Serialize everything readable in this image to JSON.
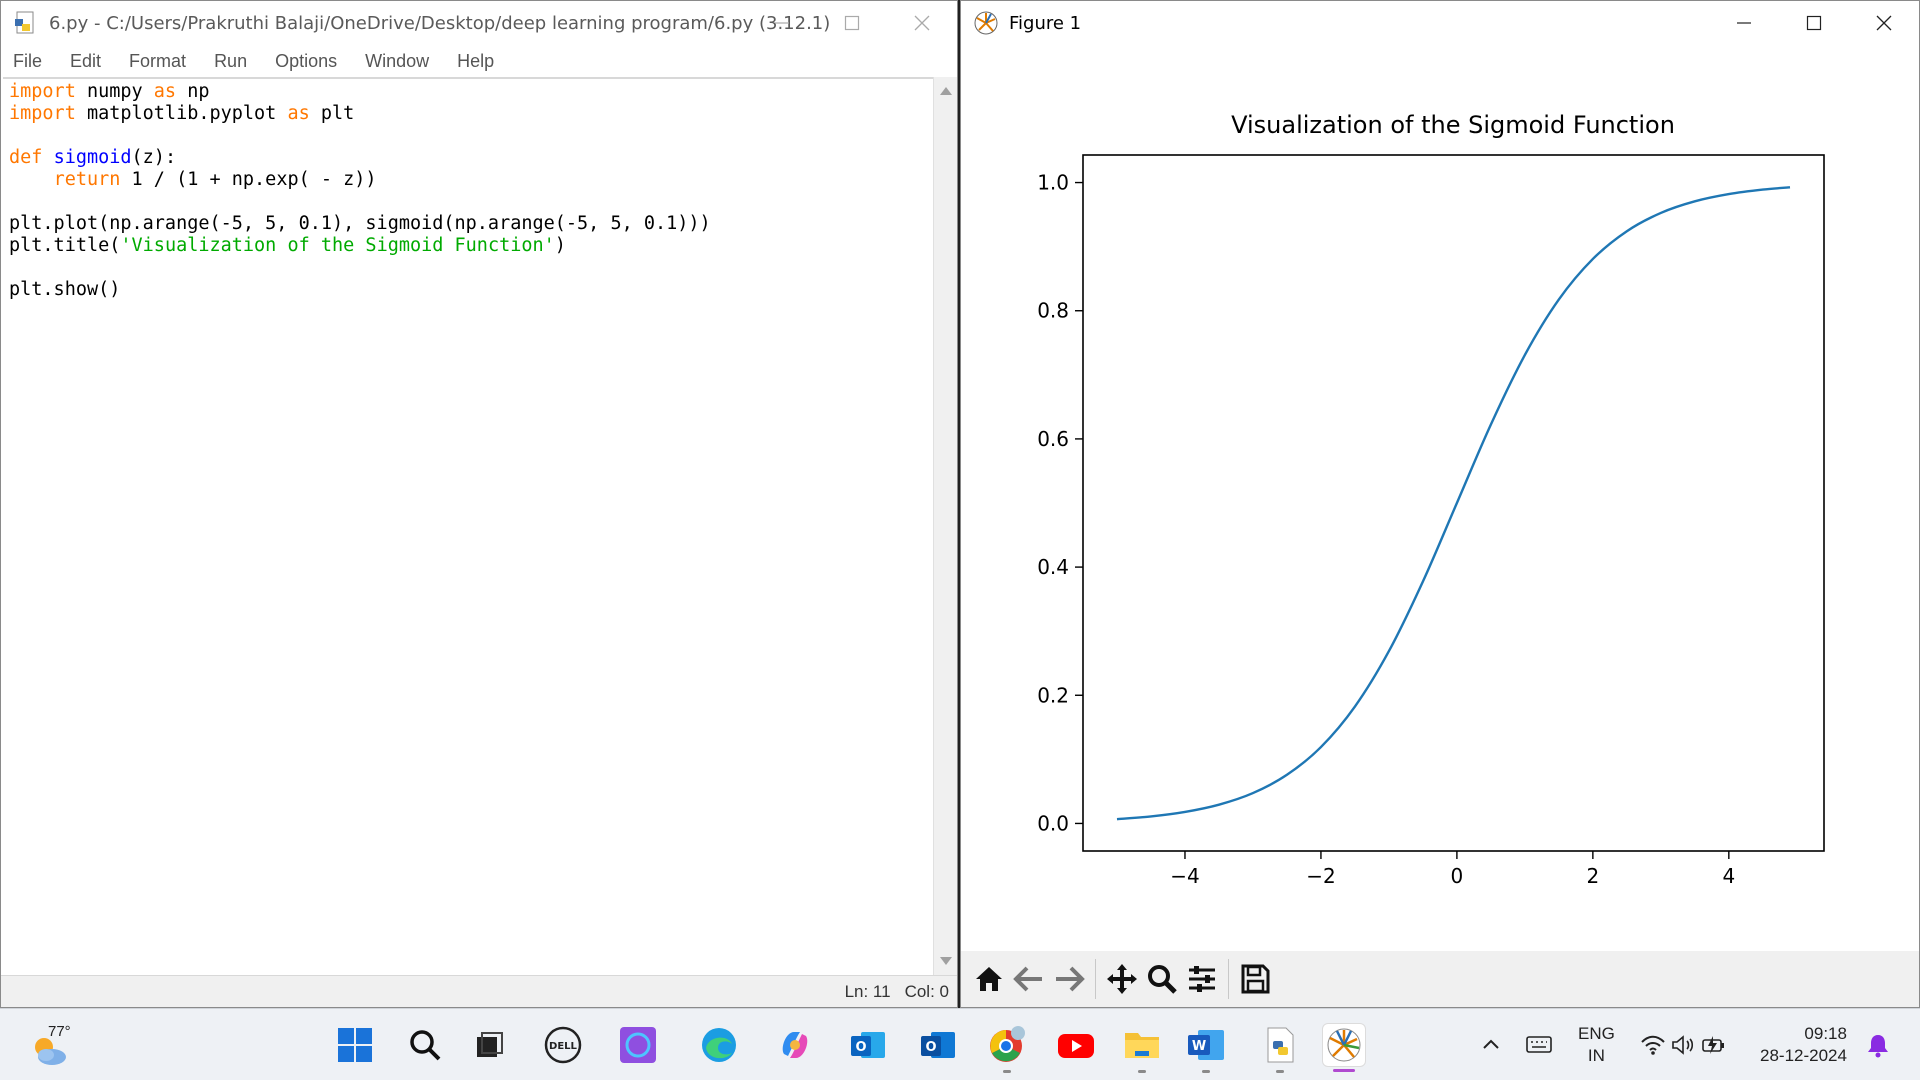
{
  "editor": {
    "title": "6.py - C:/Users/Prakruthi Balaji/OneDrive/Desktop/deep learning program/6.py (3.12.1)",
    "menu": [
      "File",
      "Edit",
      "Format",
      "Run",
      "Options",
      "Window",
      "Help"
    ],
    "status": {
      "line": "Ln: 11",
      "col": "Col: 0"
    }
  },
  "figure": {
    "title": "Figure 1"
  },
  "chart_data": {
    "type": "line",
    "title": "Visualization of the Sigmoid Function",
    "xlabel": "",
    "ylabel": "",
    "x_range": [
      -5,
      4.9
    ],
    "xlim": [
      -5.5,
      5.4
    ],
    "ylim": [
      -0.043,
      1.043
    ],
    "xticks": [
      -4,
      -2,
      0,
      2,
      4
    ],
    "xtick_labels": [
      "−4",
      "−2",
      "0",
      "2",
      "4"
    ],
    "yticks": [
      0.0,
      0.2,
      0.4,
      0.6,
      0.8,
      1.0
    ],
    "ytick_labels": [
      "0.0",
      "0.2",
      "0.4",
      "0.6",
      "0.8",
      "1.0"
    ],
    "grid": false,
    "line_color": "#1f77b4",
    "series": [
      {
        "x": [
          -5,
          -4.5,
          -4,
          -3.5,
          -3,
          -2.5,
          -2,
          -1.5,
          -1,
          -0.5,
          0,
          0.5,
          1,
          1.5,
          2,
          2.5,
          3,
          3.5,
          4,
          4.5,
          4.9
        ],
        "y": [
          0.0067,
          0.011,
          0.018,
          0.0293,
          0.0474,
          0.0759,
          0.1192,
          0.1824,
          0.2689,
          0.3775,
          0.5,
          0.6225,
          0.7311,
          0.8176,
          0.8808,
          0.9241,
          0.9526,
          0.9707,
          0.982,
          0.989,
          0.9926
        ]
      }
    ]
  },
  "taskbar": {
    "weather_temp": "77°",
    "lang_top": "ENG",
    "lang_bottom": "IN",
    "time": "09:18",
    "date": "28-12-2024"
  }
}
